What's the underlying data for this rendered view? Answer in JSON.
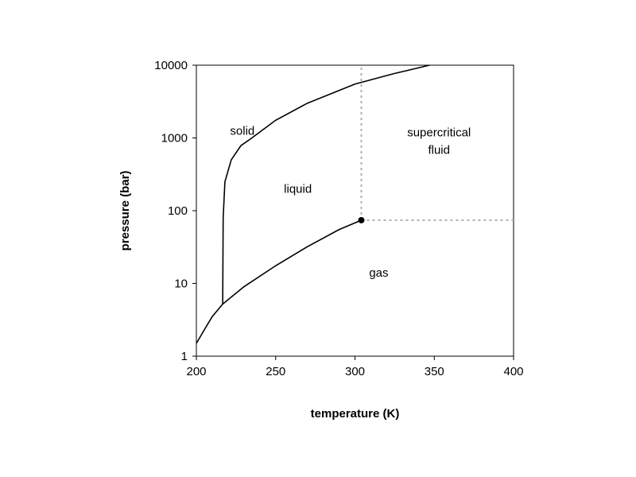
{
  "chart_data": {
    "type": "line",
    "title": "",
    "xlabel": "temperature (K)",
    "ylabel": "pressure (bar)",
    "xlim": [
      200,
      400
    ],
    "ylim": [
      1,
      10000
    ],
    "yscale": "log",
    "grid": false,
    "x_ticks": [
      200,
      250,
      300,
      350,
      400
    ],
    "y_ticks": [
      1,
      10,
      100,
      1000,
      10000
    ],
    "x_tick_labels": [
      "200",
      "250",
      "300",
      "350",
      "400"
    ],
    "y_tick_labels": [
      "1",
      "10",
      "100",
      "1000",
      "10000"
    ],
    "series": [
      {
        "key": "sublimation",
        "style": "solid",
        "x": [
          200,
          205,
          210,
          216.6
        ],
        "y": [
          1.5,
          2.3,
          3.5,
          5.2
        ]
      },
      {
        "key": "vaporization",
        "style": "solid",
        "x": [
          216.6,
          230,
          250,
          270,
          290,
          304
        ],
        "y": [
          5.2,
          9.0,
          17.5,
          32,
          55,
          74
        ]
      },
      {
        "key": "melting",
        "style": "solid",
        "x": [
          216.6,
          216.9,
          218,
          222,
          228,
          235,
          250,
          270,
          300,
          325,
          347
        ],
        "y": [
          5.2,
          80,
          250,
          500,
          780,
          1000,
          1750,
          3000,
          5500,
          7700,
          10000
        ]
      },
      {
        "key": "critical-temperature",
        "style": "dotted",
        "x": [
          304,
          304
        ],
        "y": [
          74,
          10000
        ]
      },
      {
        "key": "critical-pressure",
        "style": "dotted",
        "x": [
          304,
          400
        ],
        "y": [
          74,
          74
        ]
      }
    ],
    "points": [
      {
        "key": "critical-point",
        "x": 304,
        "y": 74
      }
    ],
    "annotations": [
      {
        "key": "solid",
        "lines": [
          "solid"
        ],
        "x": 229,
        "y": 1250
      },
      {
        "key": "liquid",
        "lines": [
          "liquid"
        ],
        "x": 264,
        "y": 200
      },
      {
        "key": "supercritical",
        "lines": [
          "supercritical",
          "fluid"
        ],
        "x": 353,
        "y": 900
      },
      {
        "key": "gas",
        "lines": [
          "gas"
        ],
        "x": 315,
        "y": 14
      }
    ]
  }
}
